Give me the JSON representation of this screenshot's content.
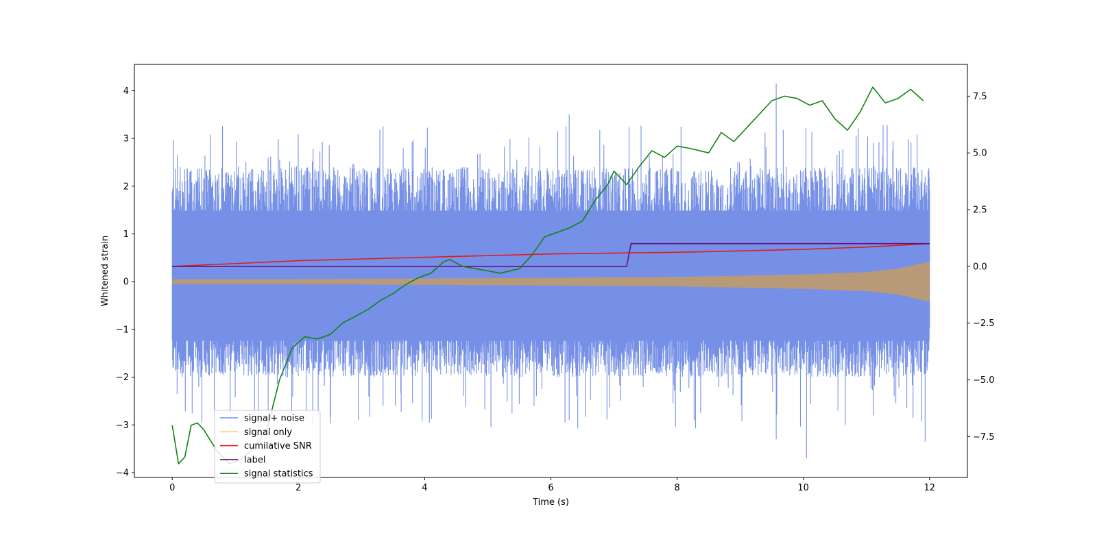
{
  "chart_data": {
    "type": "line",
    "title": "",
    "xlabel": "Time (s)",
    "ylabel": "Whitened strain",
    "y2label": "",
    "xlim": [
      -0.6,
      12.6
    ],
    "ylim": [
      -4.1,
      4.55
    ],
    "y2lim": [
      -9.3,
      8.9
    ],
    "xticks": [
      0,
      2,
      4,
      6,
      8,
      10,
      12
    ],
    "xtick_labels": [
      "0",
      "2",
      "4",
      "6",
      "8",
      "10",
      "12"
    ],
    "yticks": [
      -4,
      -3,
      -2,
      -1,
      0,
      1,
      2,
      3,
      4
    ],
    "ytick_labels": [
      "−4",
      "−3",
      "−2",
      "−1",
      "0",
      "1",
      "2",
      "3",
      "4"
    ],
    "y2ticks": [
      -7.5,
      -5.0,
      -2.5,
      0.0,
      2.5,
      5.0,
      7.5
    ],
    "y2tick_labels": [
      "−7.5",
      "−5.0",
      "−2.5",
      "0.0",
      "2.5",
      "5.0",
      "7.5"
    ],
    "legend_position": "lower-left",
    "series": [
      {
        "name": "signal+ noise",
        "color": "#7590e6",
        "axis": "left",
        "kind": "noise-band",
        "x_range": [
          0,
          12
        ],
        "typical_min": -2.0,
        "typical_max": 2.4,
        "spike_peak_max": 4.15,
        "spike_peak_min": -3.7
      },
      {
        "name": "signal only",
        "color": "#ffc67a",
        "fill_color": "#b89a78",
        "axis": "left",
        "kind": "chirp-envelope",
        "x": [
          0,
          2,
          4,
          6,
          8,
          10,
          11,
          11.5,
          12
        ],
        "amplitude": [
          0.05,
          0.055,
          0.065,
          0.08,
          0.1,
          0.15,
          0.2,
          0.27,
          0.42
        ]
      },
      {
        "name": "cumilative SNR",
        "color": "#e31a1c",
        "axis": "right",
        "x": [
          0,
          2,
          4,
          6,
          8,
          9,
          10,
          11,
          12
        ],
        "values": [
          0.0,
          0.25,
          0.4,
          0.55,
          0.62,
          0.68,
          0.75,
          0.85,
          1.0
        ]
      },
      {
        "name": "label",
        "color": "#6a0d83",
        "axis": "right",
        "x": [
          0,
          7.2,
          7.27,
          12
        ],
        "values": [
          0.0,
          0.0,
          1.0,
          1.0
        ]
      },
      {
        "name": "signal statistics",
        "color": "#118211",
        "axis": "right",
        "x": [
          0,
          0.1,
          0.2,
          0.3,
          0.4,
          0.5,
          0.7,
          0.9,
          1.1,
          1.3,
          1.5,
          1.7,
          1.9,
          2.1,
          2.3,
          2.5,
          2.7,
          2.9,
          3.1,
          3.3,
          3.5,
          3.7,
          3.9,
          4.1,
          4.3,
          4.4,
          4.6,
          4.8,
          5.0,
          5.2,
          5.5,
          5.7,
          5.9,
          6.1,
          6.3,
          6.5,
          6.7,
          6.9,
          7.0,
          7.2,
          7.4,
          7.6,
          7.8,
          8.0,
          8.2,
          8.5,
          8.7,
          8.9,
          9.1,
          9.3,
          9.5,
          9.7,
          9.9,
          10.1,
          10.3,
          10.5,
          10.7,
          10.9,
          11.1,
          11.3,
          11.5,
          11.7,
          11.9
        ],
        "values": [
          -7.0,
          -8.7,
          -8.4,
          -7.0,
          -6.9,
          -7.2,
          -8.1,
          -8.7,
          -8.5,
          -8.0,
          -7.2,
          -5.0,
          -3.6,
          -3.1,
          -3.2,
          -3.0,
          -2.5,
          -2.2,
          -1.9,
          -1.5,
          -1.2,
          -0.8,
          -0.5,
          -0.3,
          0.2,
          0.3,
          0.0,
          -0.1,
          -0.2,
          -0.3,
          -0.1,
          0.5,
          1.3,
          1.5,
          1.7,
          2.0,
          2.9,
          3.6,
          4.2,
          3.6,
          4.4,
          5.1,
          4.8,
          5.3,
          5.2,
          5.0,
          5.9,
          5.5,
          6.1,
          6.7,
          7.3,
          7.5,
          7.4,
          7.1,
          7.3,
          6.5,
          6.0,
          6.8,
          7.9,
          7.2,
          7.4,
          7.8,
          7.3
        ]
      }
    ]
  }
}
